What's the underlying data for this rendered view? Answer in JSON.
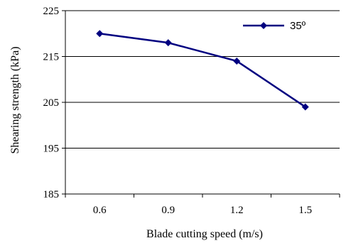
{
  "chart_data": {
    "type": "line",
    "x": [
      0.6,
      0.9,
      1.2,
      1.5
    ],
    "x_tick_labels": [
      "0.6",
      "0.9",
      "1.2",
      "1.5"
    ],
    "series": [
      {
        "name": "35º",
        "values": [
          220,
          218,
          214,
          204
        ],
        "color": "#000080",
        "marker": "diamond"
      }
    ],
    "xlabel": "Blade cutting speed (m/s)",
    "ylabel": "Shearing strength (kPa)",
    "ylim": [
      185,
      225
    ],
    "y_ticks": [
      185,
      195,
      205,
      215,
      225
    ],
    "grid": "horizontal",
    "legend_position": "top-right"
  }
}
